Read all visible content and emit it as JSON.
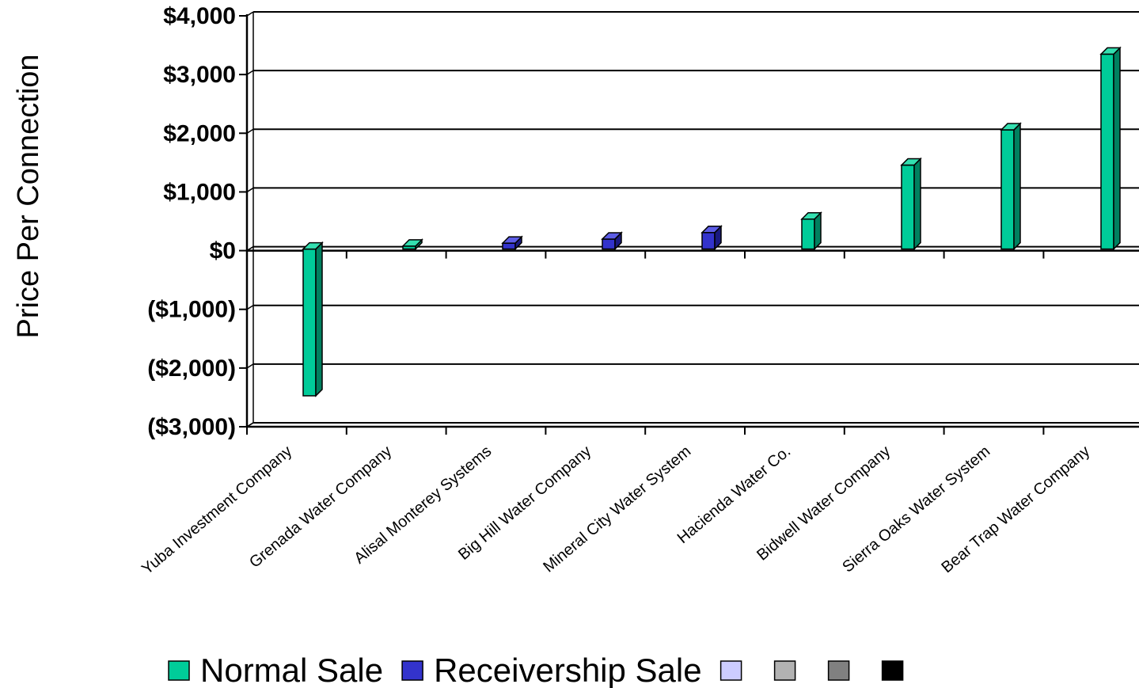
{
  "chart_data": {
    "type": "bar",
    "title": "",
    "xlabel": "",
    "ylabel": "Price Per Connection",
    "ylim": [
      -3000,
      4000
    ],
    "y_ticks": [
      4000,
      3000,
      2000,
      1000,
      0,
      -1000,
      -2000,
      -3000
    ],
    "y_tick_labels": [
      "$4,000",
      "$3,000",
      "$2,000",
      "$1,000",
      "$0",
      "($1,000)",
      "($2,000)",
      "($3,000)"
    ],
    "grid": true,
    "legend_placement": "bottom",
    "categories": [
      "Yuba Investment Company",
      "Grenada Water Company",
      "Alisal Monterey Systems",
      "Big Hill Water Company",
      "Mineral City Water System",
      "Hacienda Water Co.",
      "Bidwell Water Company",
      "Sierra Oaks Water System",
      "Bear Trap Water Company"
    ],
    "values": [
      -2500,
      50,
      100,
      170,
      280,
      510,
      1430,
      2030,
      3320
    ],
    "bar_series": [
      "Normal Sale",
      "Normal Sale",
      "Receivership Sale",
      "Receivership Sale",
      "Receivership Sale",
      "Normal Sale",
      "Normal Sale",
      "Normal Sale",
      "Normal Sale"
    ],
    "series": [
      {
        "name": "Normal Sale",
        "color": "#00CC99",
        "side_color": "#00805F",
        "top_color": "#33E0B0"
      },
      {
        "name": "Receivership Sale",
        "color": "#3333CC",
        "side_color": "#1A1A80",
        "top_color": "#5C5CE6"
      }
    ],
    "legend": [
      {
        "name": "Normal Sale",
        "color": "#00CC99"
      },
      {
        "name": "Receivership Sale",
        "color": "#3333CC"
      },
      {
        "name": "",
        "color": "#CCCCFF"
      },
      {
        "name": "",
        "color": "#B2B2B2"
      },
      {
        "name": "",
        "color": "#808080"
      },
      {
        "name": "",
        "color": "#000000"
      }
    ]
  }
}
